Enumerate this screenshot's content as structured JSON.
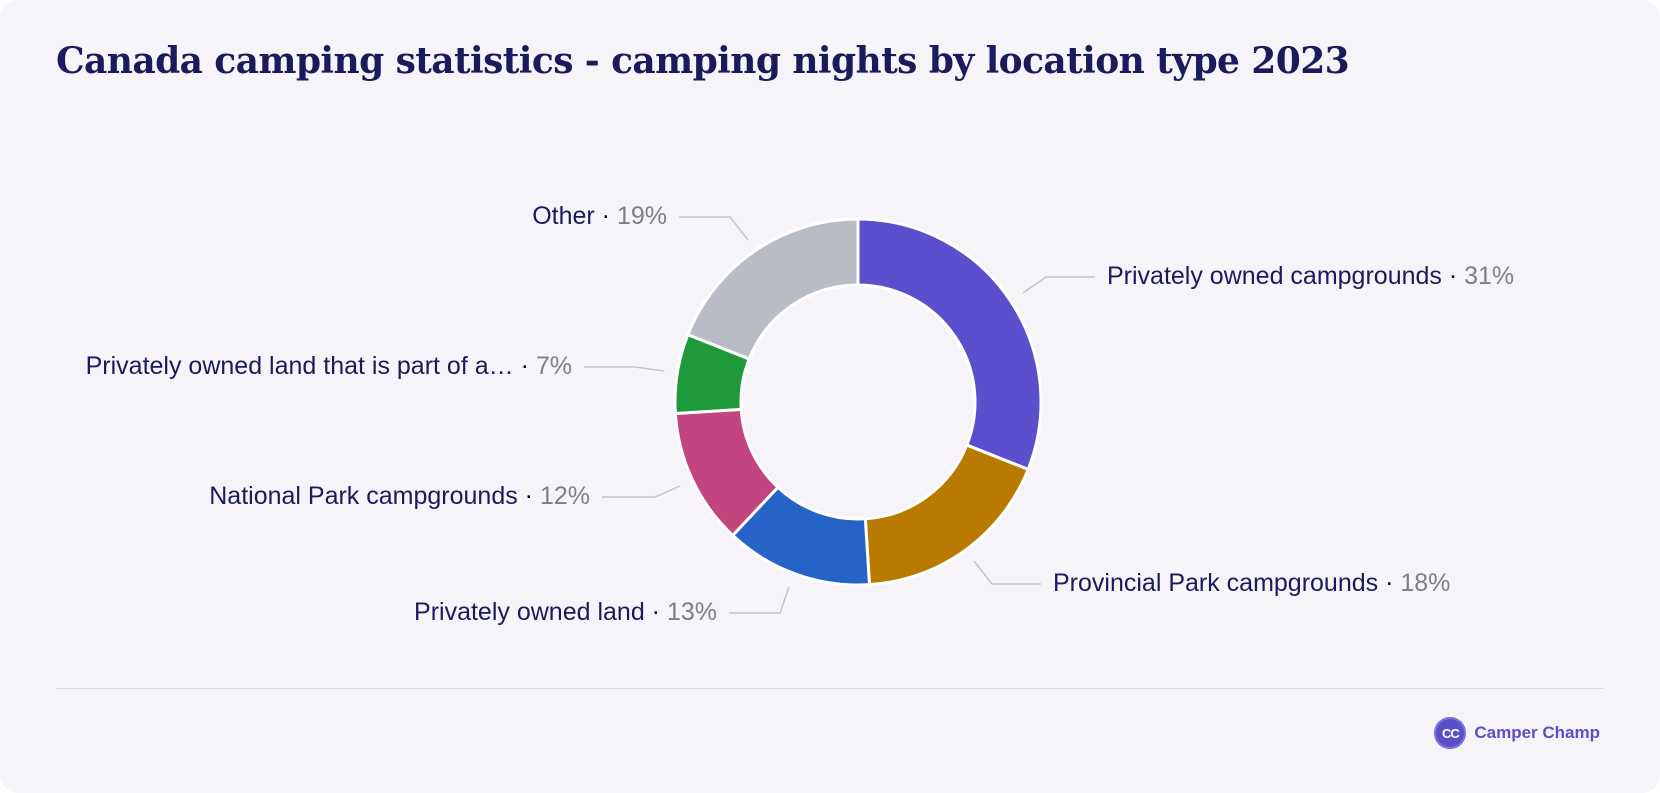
{
  "chart_data": {
    "type": "pie",
    "variant": "donut",
    "title": "Canada camping statistics - camping nights by location type 2023",
    "slices": [
      {
        "label": "Privately owned campgrounds",
        "value": 31,
        "display": "31%",
        "color": "#5b4fce"
      },
      {
        "label": "Provincial Park campgrounds",
        "value": 18,
        "display": "18%",
        "color": "#b87b00"
      },
      {
        "label": "Privately owned land",
        "value": 13,
        "display": "13%",
        "color": "#2563c7"
      },
      {
        "label": "National Park campgrounds",
        "value": 12,
        "display": "12%",
        "color": "#c24580"
      },
      {
        "label": "Privately owned land that is part of a…",
        "value": 7,
        "display": "7%",
        "color": "#1e9a3a"
      },
      {
        "label": "Other",
        "value": 19,
        "display": "19%",
        "color": "#b9bcc5"
      }
    ]
  },
  "brand": {
    "logo_text": "CC",
    "name": "Camper Champ"
  }
}
